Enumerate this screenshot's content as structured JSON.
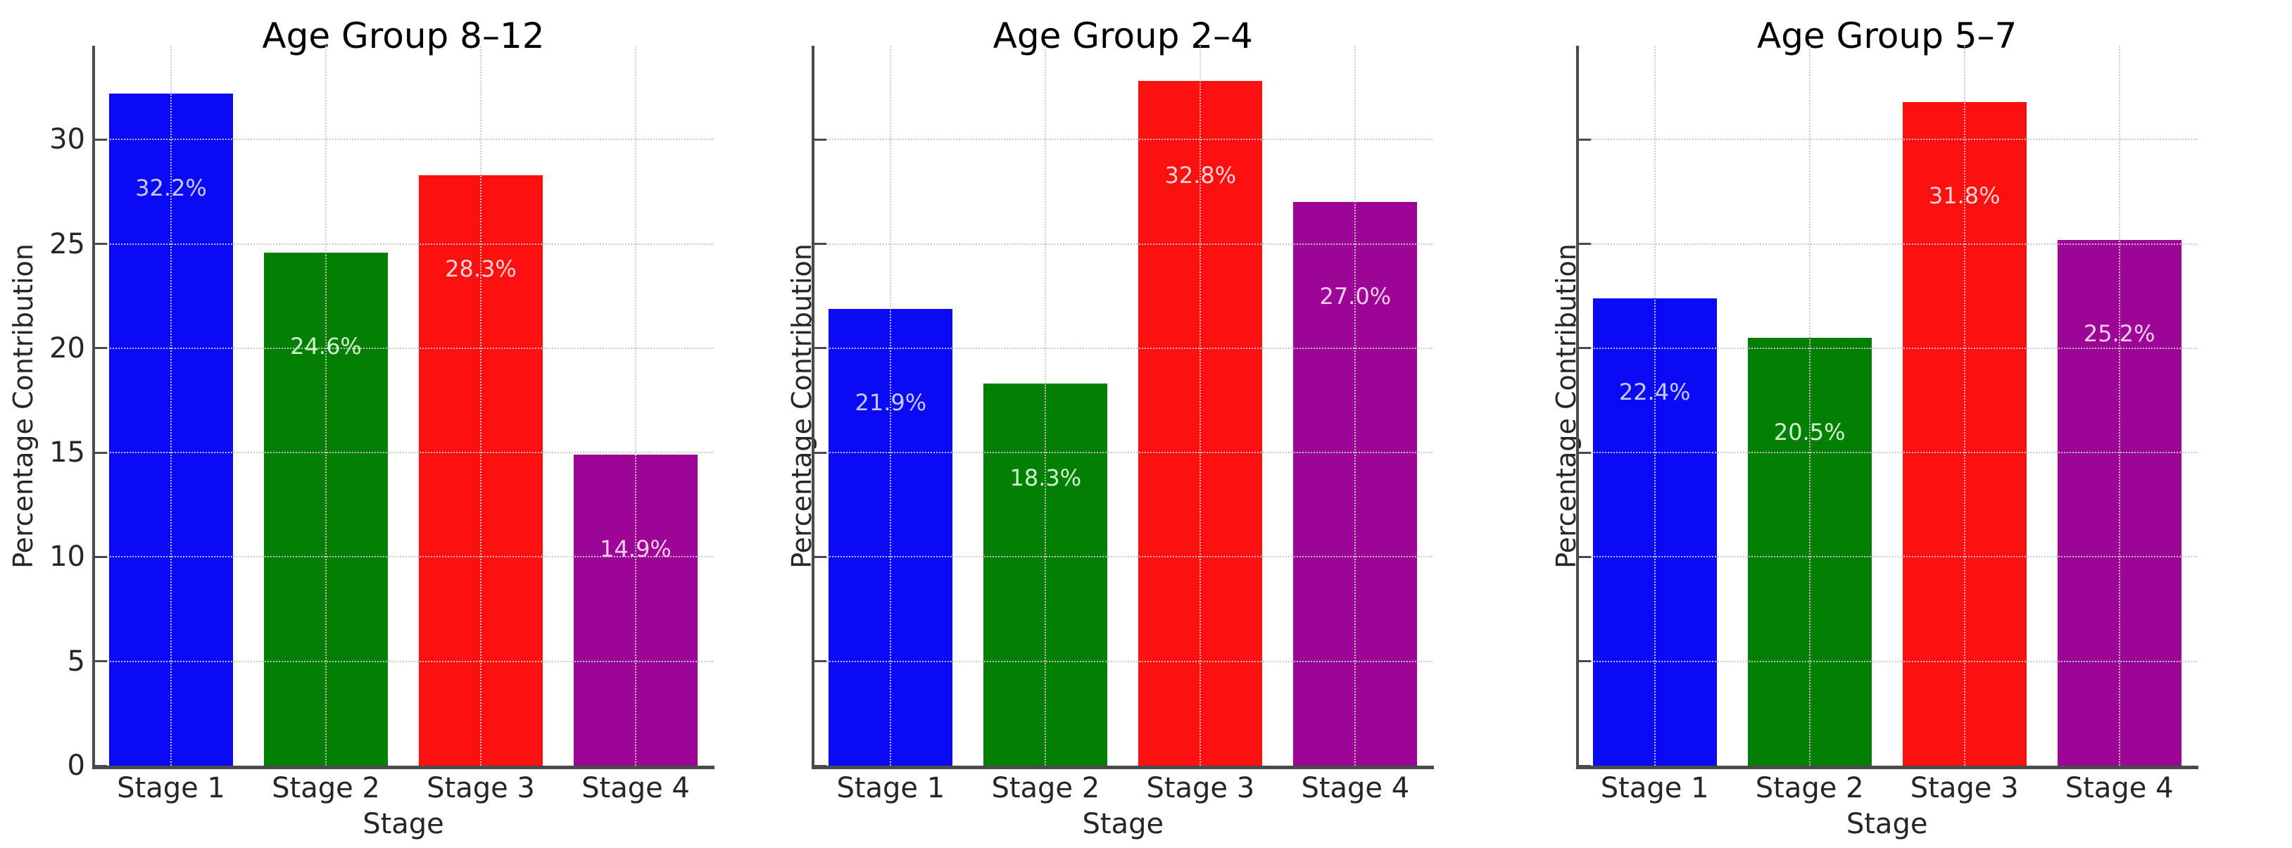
{
  "figure": {
    "background": "#ffffff",
    "description": "Three side-by-side bar subplots of percentage contribution per stage for three age groups"
  },
  "style": {
    "spine_color": "#4a4a4a",
    "grid_color": "#c8c8c8",
    "text_color": "#262626",
    "title_color": "#000000"
  },
  "chart_data": {
    "type": "bar",
    "categories": [
      "Stage 1",
      "Stage 2",
      "Stage 3",
      "Stage 4"
    ],
    "xlabel": "Stage",
    "ylabel": "Percentage Contribution",
    "ylim": [
      0,
      34.5
    ],
    "yticks": [
      0,
      5,
      10,
      15,
      20,
      25,
      30
    ],
    "grid": "dotted gridlines on both axes, drawn over bars",
    "legend": "none",
    "bar_colors": [
      "#0a0af5",
      "#038003",
      "#fc1010",
      "#9c0596"
    ],
    "bar_label_colors": [
      "#c9c9fa",
      "#cdf0cd",
      "#fcd2d2",
      "#f2cdee"
    ],
    "charts": [
      {
        "title": "Age Group 8–12",
        "values": [
          32.2,
          24.6,
          28.3,
          14.9
        ],
        "bar_labels": [
          "32.2%",
          "24.6%",
          "28.3%",
          "14.9%"
        ],
        "show_ytick_labels": true
      },
      {
        "title": "Age Group 2–4",
        "values": [
          21.9,
          18.3,
          32.8,
          27.0
        ],
        "bar_labels": [
          "21.9%",
          "18.3%",
          "32.8%",
          "27.0%"
        ],
        "show_ytick_labels": false
      },
      {
        "title": "Age Group 5–7",
        "values": [
          22.4,
          20.5,
          31.8,
          25.2
        ],
        "bar_labels": [
          "22.4%",
          "20.5%",
          "31.8%",
          "25.2%"
        ],
        "show_ytick_labels": false
      }
    ]
  }
}
